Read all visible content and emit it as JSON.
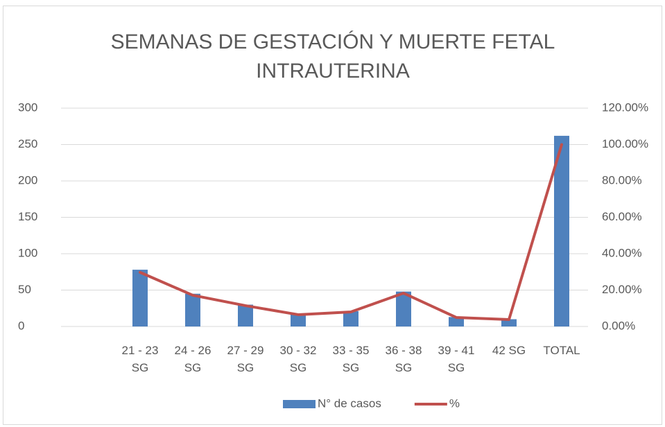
{
  "chart_data": {
    "type": "bar",
    "title": "SEMANAS DE GESTACIÓN Y MUERTE FETAL INTRAUTERINA",
    "categories": [
      null,
      "21 - 23 SG",
      "24 - 26 SG",
      "27 - 29 SG",
      "30 - 32 SG",
      "33 - 35 SG",
      "36 - 38 SG",
      "39 - 41 SG",
      "42 SG",
      "TOTAL"
    ],
    "series": [
      {
        "name": "N° de casos",
        "type": "bar",
        "color": "#4f81bd",
        "values": [
          null,
          78,
          45,
          30,
          17,
          21,
          48,
          13,
          10,
          262
        ]
      },
      {
        "name": "%",
        "type": "line",
        "axis": "y2",
        "color": "#c0504d",
        "values": [
          null,
          29.77,
          17.18,
          11.45,
          6.49,
          8.02,
          18.32,
          4.96,
          3.82,
          100
        ]
      }
    ],
    "ylim": [
      0,
      300
    ],
    "yticks": [
      0,
      50,
      100,
      150,
      200,
      250,
      300
    ],
    "y2lim": [
      0,
      120
    ],
    "y2ticks": [
      {
        "value": 0,
        "label": "0.00%"
      },
      {
        "value": 20,
        "label": "20.00%"
      },
      {
        "value": 40,
        "label": "40.00%"
      },
      {
        "value": 60,
        "label": "60.00%"
      },
      {
        "value": 80,
        "label": "80.00%"
      },
      {
        "value": 100,
        "label": "100.00%"
      },
      {
        "value": 120,
        "label": "120.00%"
      }
    ],
    "grid": true,
    "legend": "bottom"
  }
}
